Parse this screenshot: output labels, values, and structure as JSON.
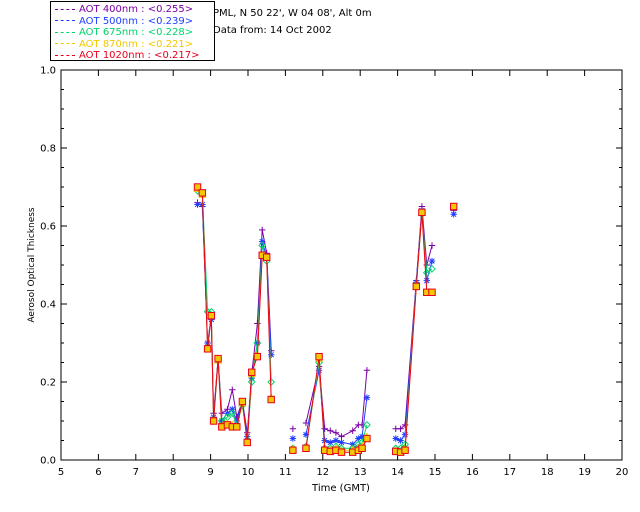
{
  "info": {
    "site": "PML, N 50 22', W 04 08', Alt 0m",
    "date": "Data from: 14 Oct 2002"
  },
  "legend": [
    {
      "label": "AOT  400nm : <0.255>",
      "color": "#7b00a6"
    },
    {
      "label": "AOT  500nm : <0.239>",
      "color": "#1f3fff"
    },
    {
      "label": "AOT  675nm : <0.228>",
      "color": "#00d46a"
    },
    {
      "label": "AOT  870nm : <0.221>",
      "color": "#f2c800"
    },
    {
      "label": "AOT 1020nm : <0.217>",
      "color": "#e8001c"
    }
  ],
  "chart_data": {
    "type": "line",
    "xlabel": "Time (GMT)",
    "ylabel": "Aerosol Optical Thickness",
    "xlim": [
      5,
      20
    ],
    "ylim": [
      0.0,
      1.0
    ],
    "xticks": [
      "5",
      "6",
      "7",
      "8",
      "9",
      "10",
      "11",
      "12",
      "13",
      "14",
      "15",
      "16",
      "17",
      "18",
      "19",
      "20"
    ],
    "yticks": [
      "0.0",
      "0.2",
      "0.4",
      "0.6",
      "0.8",
      "1.0"
    ],
    "x": [
      8.65,
      8.78,
      8.92,
      9.02,
      9.08,
      9.2,
      9.3,
      9.45,
      9.58,
      9.7,
      9.85,
      9.98,
      10.1,
      10.25,
      10.38,
      10.5,
      10.62,
      11.2,
      11.55,
      11.9,
      12.05,
      12.2,
      12.35,
      12.5,
      12.8,
      12.95,
      13.05,
      13.18,
      13.95,
      14.08,
      14.2,
      14.5,
      14.65,
      14.78,
      14.92,
      15.5
    ],
    "series": [
      {
        "name": "AOT  400nm : <0.255>",
        "marker": "plus",
        "color": "#7b00a6",
        "values": [
          0.66,
          0.65,
          0.3,
          0.37,
          0.12,
          0.26,
          0.12,
          0.13,
          0.18,
          0.11,
          0.15,
          0.07,
          0.22,
          0.35,
          0.59,
          0.53,
          0.28,
          0.08,
          0.095,
          0.24,
          0.08,
          0.075,
          0.07,
          0.06,
          0.075,
          0.09,
          0.09,
          0.23,
          0.08,
          0.08,
          0.09,
          0.46,
          0.65,
          0.5,
          0.55,
          0.64
        ]
      },
      {
        "name": "AOT  500nm : <0.239>",
        "marker": "star",
        "color": "#1f3fff",
        "values": [
          0.655,
          0.655,
          0.3,
          0.36,
          0.11,
          0.255,
          0.1,
          0.12,
          0.13,
          0.1,
          0.15,
          0.06,
          0.21,
          0.3,
          0.56,
          0.52,
          0.27,
          0.055,
          0.065,
          0.23,
          0.05,
          0.045,
          0.05,
          0.045,
          0.04,
          0.055,
          0.06,
          0.16,
          0.055,
          0.05,
          0.065,
          0.455,
          0.64,
          0.46,
          0.51,
          0.63
        ]
      },
      {
        "name": "AOT  675nm : <0.228>",
        "marker": "diamond",
        "color": "#00d46a",
        "values": [
          0.69,
          0.68,
          0.38,
          0.38,
          0.1,
          0.26,
          0.1,
          0.11,
          0.12,
          0.09,
          0.14,
          0.05,
          0.2,
          0.3,
          0.55,
          0.51,
          0.2,
          0.03,
          0.035,
          0.25,
          0.03,
          0.03,
          0.035,
          0.03,
          0.03,
          0.04,
          0.045,
          0.09,
          0.03,
          0.03,
          0.04,
          0.45,
          0.63,
          0.48,
          0.49,
          0.65
        ]
      },
      {
        "name": "AOT  870nm : <0.221>",
        "marker": "triangle",
        "color": "#f2c800",
        "values": [
          0.695,
          0.68,
          0.29,
          0.37,
          0.105,
          0.255,
          0.09,
          0.095,
          0.09,
          0.085,
          0.145,
          0.045,
          0.22,
          0.27,
          0.525,
          0.52,
          0.16,
          0.028,
          0.03,
          0.26,
          0.025,
          0.025,
          0.03,
          0.025,
          0.025,
          0.03,
          0.035,
          0.06,
          0.025,
          0.02,
          0.03,
          0.445,
          0.635,
          0.43,
          0.43,
          0.65
        ]
      },
      {
        "name": "AOT 1020nm : <0.217>",
        "marker": "square",
        "color": "#e8001c",
        "values": [
          0.7,
          0.685,
          0.285,
          0.37,
          0.1,
          0.26,
          0.085,
          0.09,
          0.085,
          0.085,
          0.15,
          0.045,
          0.225,
          0.265,
          0.525,
          0.52,
          0.155,
          0.025,
          0.03,
          0.265,
          0.025,
          0.022,
          0.025,
          0.02,
          0.02,
          0.025,
          0.03,
          0.055,
          0.022,
          0.02,
          0.025,
          0.445,
          0.635,
          0.43,
          0.43,
          0.65
        ]
      }
    ],
    "grid": false,
    "legend_position": "top-left"
  }
}
